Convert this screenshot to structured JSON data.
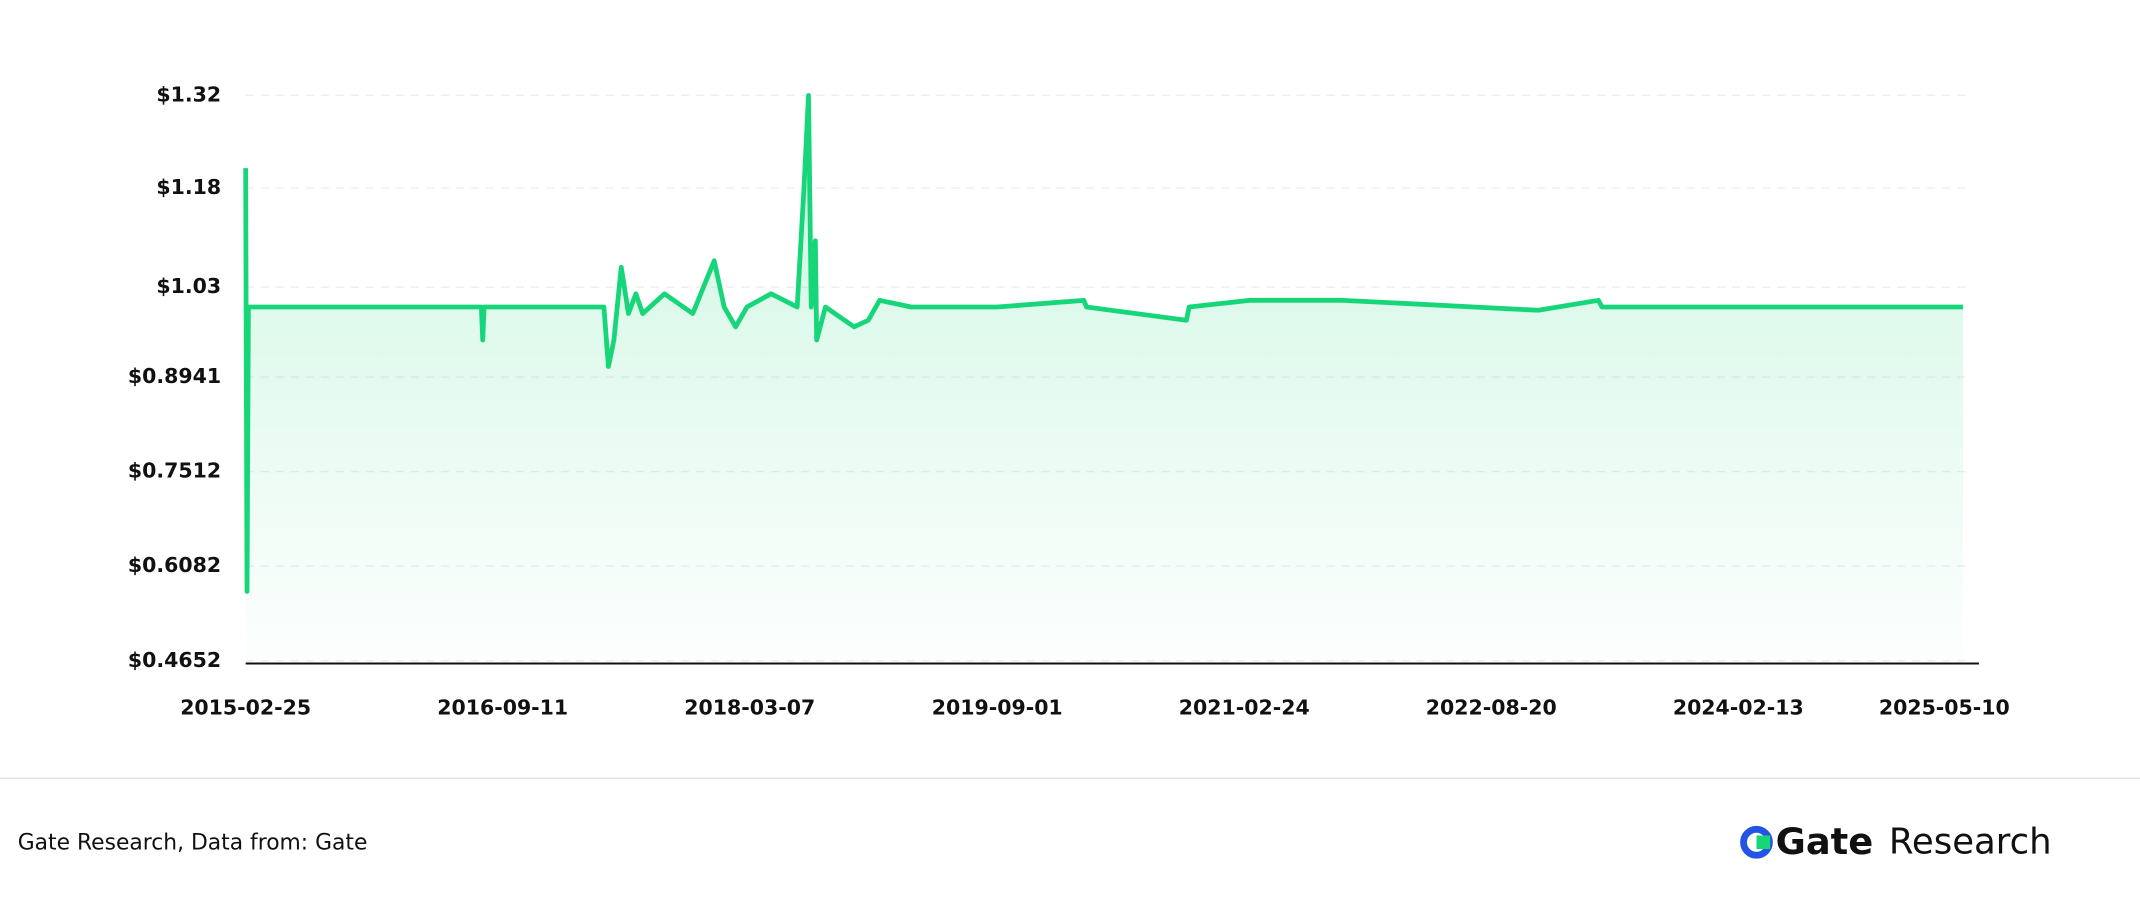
{
  "chart_data": {
    "type": "line",
    "color": "#17d67a",
    "x": [
      "2015-02-25",
      "2015-02-28",
      "2015-03-03",
      "2016-07-26",
      "2016-07-29",
      "2016-08-01",
      "2017-04-21",
      "2017-05-01",
      "2017-05-13",
      "2017-05-29",
      "2017-06-14",
      "2017-06-30",
      "2017-07-15",
      "2017-09-01",
      "2017-11-02",
      "2017-12-19",
      "2018-01-10",
      "2018-02-04",
      "2018-03-01",
      "2018-04-23",
      "2018-06-19",
      "2018-07-04",
      "2018-07-14",
      "2018-07-20",
      "2018-07-29",
      "2018-08-01",
      "2018-08-20",
      "2018-10-22",
      "2018-11-22",
      "2018-12-17",
      "2019-02-24",
      "2019-09-01",
      "2020-03-09",
      "2020-03-15",
      "2020-10-20",
      "2020-10-26",
      "2021-03-07",
      "2021-09-29",
      "2022-12-01",
      "2023-04-12",
      "2023-04-20",
      "2025-06-20"
    ],
    "values": [
      1.21,
      0.57,
      1.0,
      1.0,
      0.95,
      1.0,
      1.0,
      0.91,
      0.95,
      1.06,
      0.99,
      1.02,
      0.99,
      1.02,
      0.99,
      1.07,
      1.0,
      0.97,
      1.0,
      1.02,
      1.0,
      1.18,
      1.32,
      1.0,
      1.1,
      0.95,
      1.0,
      0.97,
      0.98,
      1.01,
      1.0,
      1.0,
      1.01,
      1.0,
      0.98,
      1.0,
      1.01,
      1.01,
      0.995,
      1.01,
      1.0,
      1.0
    ],
    "xlim": [
      "2015-02-25",
      "2025-07-25"
    ],
    "xticks": [
      "2015-02-25",
      "2016-09-11",
      "2018-03-07",
      "2019-09-01",
      "2021-02-24",
      "2022-08-20",
      "2024-02-13",
      "2025-05-10"
    ],
    "ylim": [
      0.4652,
      1.34
    ],
    "yticks": [
      {
        "value": 0.4652,
        "label": "$0.4652"
      },
      {
        "value": 0.6082,
        "label": "$0.6082"
      },
      {
        "value": 0.7512,
        "label": "$0.7512"
      },
      {
        "value": 0.8941,
        "label": "$0.8941"
      },
      {
        "value": 1.03,
        "label": "$1.03"
      },
      {
        "value": 1.18,
        "label": "$1.18"
      },
      {
        "value": 1.32,
        "label": "$1.32"
      }
    ],
    "grid": true
  },
  "footer": {
    "source": "Gate Research, Data from:  Gate",
    "brand": "Gate",
    "brand_suffix": "Research"
  }
}
